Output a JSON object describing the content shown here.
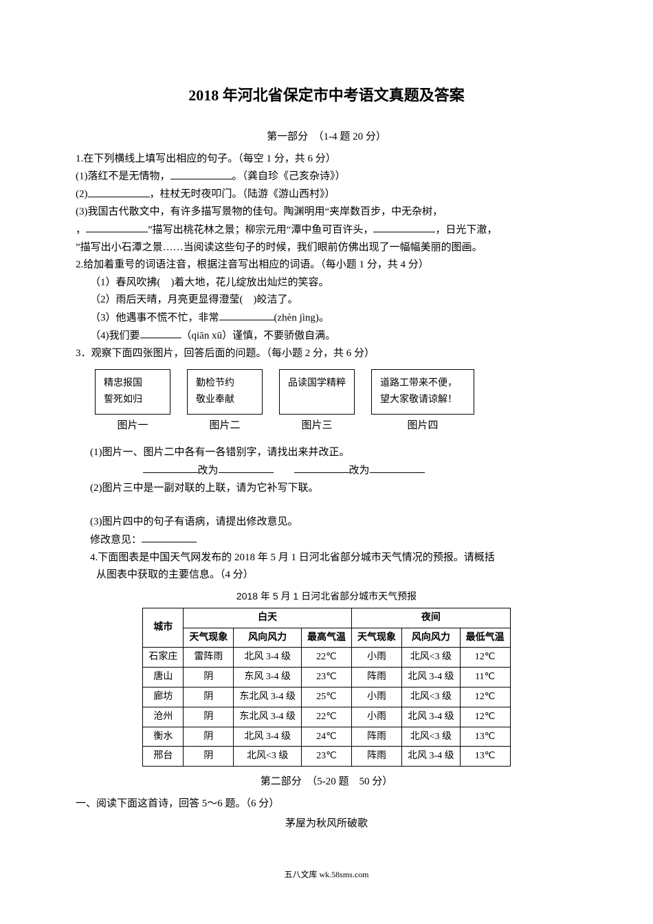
{
  "doc": {
    "title": "2018 年河北省保定市中考语文真题及答案",
    "section1_header": "第一部分　（1-4 题  20 分）",
    "q1": {
      "stem": "1.在下列横线上填写出相应的句子。（每空 1 分，共 6 分）",
      "i1a": "(1)落红不是无情物，",
      "i1b": "。（龚自珍《己亥杂诗》）",
      "i2a": "(2)",
      "i2b": "，柱杖无时夜叩门。（陆游《游山西村》）",
      "i3a": "(3)我国古代散文中，有许多描写景物的佳句。陶渊明用“夹岸数百步，中无杂树，",
      "i3b": "，",
      "i3c": "”描写出桃花林之景；柳宗元用“潭中鱼可百许头，",
      "i3d": "，日光下澈，",
      "i3e": "”描写出小石潭之景……当阅读这些句子的时候，我们眼前仿佛出现了一幅幅美丽的图画。"
    },
    "q2": {
      "stem": "2.给加着重号的词语注音，根据注音写出相应的词语。（每小题 1 分，共 4 分）",
      "i1": "（1）春风吹拂(　)着大地，花儿绽放出灿烂的笑容。",
      "i2": "（2）雨后天晴，月亮更显得澄莹(　)皎洁了。",
      "i3a": "（3）他遇事不慌不忙，非常",
      "i3b": "(zhèn jìng)。",
      "i4a": "（4)我们要",
      "i4b": "（qiān xū）谨慎，不要骄傲自满。"
    },
    "q3": {
      "stem": "3．观察下面四张图片，回答后面的问题。（每小题 2 分，共 6 分）",
      "cards": [
        {
          "l1": "精忠报国",
          "l2": "誓死如归"
        },
        {
          "l1": "勤检节约",
          "l2": "敬业奉献"
        },
        {
          "l1": "品读国学精粹",
          "l2": ""
        },
        {
          "l1": "道路工带来不便，",
          "l2": "望大家敬请谅解！"
        }
      ],
      "labels": [
        "图片一",
        "图片二",
        "图片三",
        "图片四"
      ],
      "s1": "(1)图片一、图片二中各有一各错别字，请找出来并改正。",
      "s1_mid": "改为",
      "s2": "(2)图片三中是一副对联的上联，请为它补写下联。",
      "s3": "(3)图片四中的句子有语病，请提出修改意见。",
      "s3b": "修改意见："
    },
    "q4": {
      "stem": "4.下面图表是中国天气网发布的 2018 年 5 月 1 日河北省部分城市天气情况的预报。请概括",
      "stem2": "从图表中获取的主要信息。（4 分）",
      "caption": "2018 年 5 月 1 日河北省部分城市天气预报"
    },
    "table": {
      "head_city": "城市",
      "head_day": "白天",
      "head_night": "夜间",
      "sub": [
        "天气现象",
        "风向风力",
        "最高气温",
        "天气现象",
        "风向风力",
        "最低气温"
      ],
      "rows": [
        {
          "city": "石家庄",
          "d1": "雷阵雨",
          "d2": "北风 3-4 级",
          "d3": "22℃",
          "n1": "小雨",
          "n2": "北风<3 级",
          "n3": "12℃"
        },
        {
          "city": "唐山",
          "d1": "阴",
          "d2": "东风 3-4 级",
          "d3": "23℃",
          "n1": "阵雨",
          "n2": "北风 3-4 级",
          "n3": "11℃"
        },
        {
          "city": "廊坊",
          "d1": "阴",
          "d2": "东北风 3-4 级",
          "d3": "25℃",
          "n1": "小雨",
          "n2": "北风<3 级",
          "n3": "12℃"
        },
        {
          "city": "沧州",
          "d1": "阴",
          "d2": "东北风 3-4 级",
          "d3": "22℃",
          "n1": "小雨",
          "n2": "北风 3-4 级",
          "n3": "12℃"
        },
        {
          "city": "衡水",
          "d1": "阴",
          "d2": "北风 3-4 级",
          "d3": "24℃",
          "n1": "阵雨",
          "n2": "北风<3 级",
          "n3": "13℃"
        },
        {
          "city": "邢台",
          "d1": "阴",
          "d2": "北风<3 级",
          "d3": "23℃",
          "n1": "阵雨",
          "n2": "北风 3-4 级",
          "n3": "13℃"
        }
      ]
    },
    "section2_header": "第二部分　（5-20 题　50 分）",
    "reading_intro": "一、阅读下面这首诗，回答 5～6 题。（6 分）",
    "poem_title": "茅屋为秋风所破歌",
    "footer": "五八文库 wk.58sms.com"
  }
}
